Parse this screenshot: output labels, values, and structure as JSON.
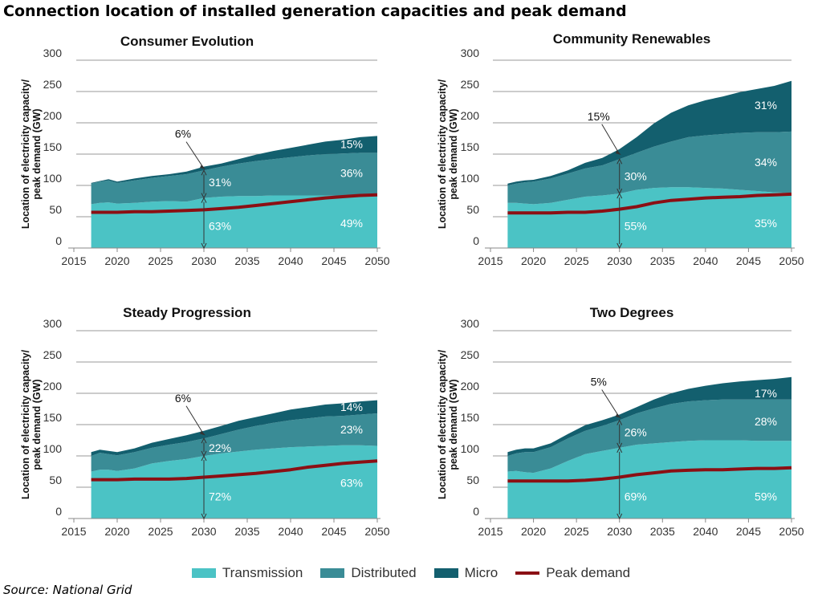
{
  "title": "Connection location of installed generation capacities and peak demand",
  "source": "Source: National Grid",
  "colors": {
    "transmission": "#4bc3c5",
    "distributed": "#3a8c96",
    "micro": "#135f6e",
    "peak": "#8b0f14",
    "gridline": "#9a9a9a",
    "tick_text": "#333333"
  },
  "legend": [
    {
      "label": "Transmission",
      "key": "transmission",
      "kind": "area"
    },
    {
      "label": "Distributed",
      "key": "distributed",
      "kind": "area"
    },
    {
      "label": "Micro",
      "key": "micro",
      "kind": "area"
    },
    {
      "label": "Peak demand",
      "key": "peak",
      "kind": "line"
    }
  ],
  "chart_data": [
    {
      "type": "area",
      "title": "Consumer Evolution",
      "ylabel": "Location of electricity capacity/ peak demand (GW)",
      "ylim": [
        0,
        300
      ],
      "yticks": [
        0,
        50,
        100,
        150,
        200,
        250,
        300
      ],
      "xticks": [
        2015,
        2020,
        2025,
        2030,
        2035,
        2040,
        2045,
        2050
      ],
      "grid": true,
      "x": [
        2017,
        2018,
        2019,
        2020,
        2022,
        2024,
        2026,
        2028,
        2030,
        2032,
        2034,
        2036,
        2038,
        2040,
        2042,
        2044,
        2046,
        2048,
        2050
      ],
      "series": [
        {
          "name": "Transmission",
          "stack_top": [
            70,
            72,
            73,
            71,
            72,
            74,
            75,
            74,
            80,
            82,
            83,
            83,
            84,
            84,
            84,
            84,
            83,
            85,
            86
          ]
        },
        {
          "name": "Distributed",
          "stack_top": [
            103,
            106,
            108,
            104,
            108,
            112,
            115,
            118,
            124,
            130,
            135,
            139,
            142,
            145,
            148,
            150,
            151,
            152,
            152
          ]
        },
        {
          "name": "Micro",
          "stack_top": [
            104,
            107,
            110,
            106,
            111,
            115,
            118,
            122,
            130,
            135,
            142,
            149,
            155,
            160,
            165,
            170,
            173,
            177,
            179
          ]
        },
        {
          "name": "Peak demand",
          "values": [
            57,
            57,
            57,
            57,
            58,
            58,
            59,
            60,
            61,
            63,
            65,
            68,
            71,
            74,
            77,
            80,
            82,
            84,
            85
          ]
        }
      ],
      "annotation": {
        "x": 2030,
        "callout": "6%",
        "labels": [
          {
            "text": "31%",
            "y": 105
          },
          {
            "text": "63%",
            "y": 35
          }
        ]
      },
      "end_labels": [
        {
          "text": "15%",
          "y": 166
        },
        {
          "text": "36%",
          "y": 120
        },
        {
          "text": "49%",
          "y": 40
        }
      ]
    },
    {
      "type": "area",
      "title": "Community Renewables",
      "ylabel": "Location of electricity capacity/ peak demand (GW)",
      "ylim": [
        0,
        300
      ],
      "yticks": [
        0,
        50,
        100,
        150,
        200,
        250,
        300
      ],
      "xticks": [
        2015,
        2020,
        2025,
        2030,
        2035,
        2040,
        2045,
        2050
      ],
      "grid": true,
      "x": [
        2017,
        2018,
        2019,
        2020,
        2022,
        2024,
        2026,
        2028,
        2030,
        2032,
        2034,
        2036,
        2038,
        2040,
        2042,
        2044,
        2046,
        2048,
        2050
      ],
      "series": [
        {
          "name": "Transmission",
          "stack_top": [
            72,
            72,
            71,
            70,
            72,
            77,
            82,
            84,
            87,
            93,
            96,
            97,
            97,
            96,
            95,
            93,
            91,
            89,
            88
          ]
        },
        {
          "name": "Distributed",
          "stack_top": [
            100,
            103,
            105,
            106,
            111,
            119,
            127,
            132,
            142,
            152,
            162,
            170,
            177,
            180,
            182,
            184,
            185,
            185,
            186
          ]
        },
        {
          "name": "Micro",
          "stack_top": [
            103,
            106,
            108,
            109,
            115,
            124,
            136,
            144,
            158,
            177,
            199,
            216,
            228,
            236,
            242,
            249,
            254,
            259,
            267
          ]
        },
        {
          "name": "Peak demand",
          "values": [
            56,
            56,
            56,
            56,
            56,
            57,
            57,
            59,
            62,
            66,
            72,
            76,
            78,
            80,
            81,
            82,
            84,
            85,
            86
          ]
        }
      ],
      "annotation": {
        "x": 2030,
        "callout": "15%",
        "labels": [
          {
            "text": "30%",
            "y": 115
          },
          {
            "text": "55%",
            "y": 35
          }
        ]
      },
      "end_labels": [
        {
          "text": "31%",
          "y": 228
        },
        {
          "text": "34%",
          "y": 137
        },
        {
          "text": "35%",
          "y": 40
        }
      ]
    },
    {
      "type": "area",
      "title": "Steady Progression",
      "ylabel": "Location of electricity capacity/ peak demand (GW)",
      "ylim": [
        0,
        300
      ],
      "yticks": [
        0,
        50,
        100,
        150,
        200,
        250,
        300
      ],
      "xticks": [
        2015,
        2020,
        2025,
        2030,
        2035,
        2040,
        2045,
        2050
      ],
      "grid": true,
      "x": [
        2017,
        2018,
        2019,
        2020,
        2022,
        2024,
        2026,
        2028,
        2030,
        2032,
        2034,
        2036,
        2038,
        2040,
        2042,
        2044,
        2046,
        2048,
        2050
      ],
      "series": [
        {
          "name": "Transmission",
          "stack_top": [
            75,
            78,
            78,
            76,
            80,
            88,
            92,
            95,
            100,
            104,
            107,
            110,
            112,
            114,
            115,
            116,
            117,
            117,
            116
          ]
        },
        {
          "name": "Distributed",
          "stack_top": [
            100,
            105,
            103,
            101,
            106,
            113,
            118,
            122,
            128,
            135,
            142,
            148,
            153,
            157,
            160,
            163,
            164,
            166,
            168
          ]
        },
        {
          "name": "Micro",
          "stack_top": [
            106,
            110,
            108,
            106,
            112,
            121,
            127,
            133,
            140,
            148,
            156,
            162,
            168,
            174,
            178,
            182,
            184,
            187,
            189
          ]
        },
        {
          "name": "Peak demand",
          "values": [
            62,
            62,
            62,
            62,
            63,
            63,
            63,
            64,
            66,
            68,
            70,
            72,
            75,
            78,
            82,
            85,
            88,
            90,
            92
          ]
        }
      ],
      "annotation": {
        "x": 2030,
        "callout": "6%",
        "labels": [
          {
            "text": "22%",
            "y": 113
          },
          {
            "text": "72%",
            "y": 35
          }
        ]
      },
      "end_labels": [
        {
          "text": "14%",
          "y": 178
        },
        {
          "text": "23%",
          "y": 142
        },
        {
          "text": "63%",
          "y": 57
        }
      ]
    },
    {
      "type": "area",
      "title": "Two Degrees",
      "ylabel": "Location of electricity capacity/ peak demand (GW)",
      "ylim": [
        0,
        300
      ],
      "yticks": [
        0,
        50,
        100,
        150,
        200,
        250,
        300
      ],
      "xticks": [
        2015,
        2020,
        2025,
        2030,
        2035,
        2040,
        2045,
        2050
      ],
      "grid": true,
      "x": [
        2017,
        2018,
        2019,
        2020,
        2022,
        2024,
        2026,
        2028,
        2030,
        2032,
        2034,
        2036,
        2038,
        2040,
        2042,
        2044,
        2046,
        2048,
        2050
      ],
      "series": [
        {
          "name": "Transmission",
          "stack_top": [
            75,
            76,
            74,
            73,
            80,
            92,
            103,
            108,
            113,
            118,
            120,
            122,
            124,
            125,
            125,
            125,
            124,
            124,
            124
          ]
        },
        {
          "name": "Distributed",
          "stack_top": [
            100,
            104,
            106,
            106,
            114,
            128,
            140,
            148,
            157,
            168,
            176,
            183,
            187,
            189,
            190,
            190,
            190,
            190,
            190
          ]
        },
        {
          "name": "Micro",
          "stack_top": [
            106,
            110,
            112,
            112,
            120,
            135,
            149,
            157,
            166,
            178,
            190,
            200,
            207,
            212,
            216,
            219,
            221,
            223,
            226
          ]
        },
        {
          "name": "Peak demand",
          "values": [
            60,
            60,
            60,
            60,
            60,
            60,
            61,
            63,
            66,
            70,
            73,
            76,
            77,
            78,
            78,
            79,
            80,
            80,
            81
          ]
        }
      ],
      "annotation": {
        "x": 2030,
        "callout": "5%",
        "labels": [
          {
            "text": "26%",
            "y": 138
          },
          {
            "text": "69%",
            "y": 35
          }
        ]
      },
      "end_labels": [
        {
          "text": "17%",
          "y": 200
        },
        {
          "text": "28%",
          "y": 155
        },
        {
          "text": "59%",
          "y": 35
        }
      ]
    }
  ]
}
